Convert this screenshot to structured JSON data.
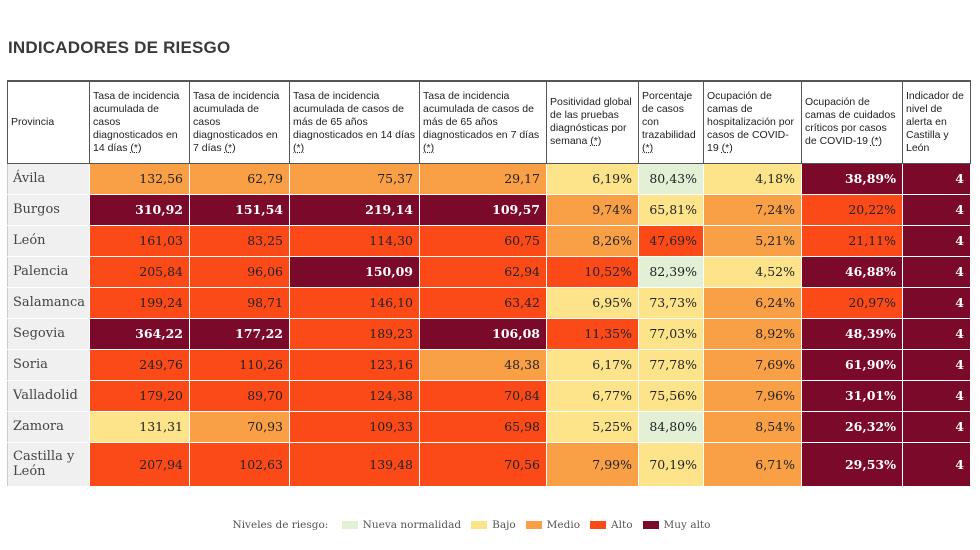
{
  "title": "INDICADORES DE RIESGO",
  "headers": [
    {
      "text": "Provincia",
      "ref": ""
    },
    {
      "text": "Tasa de incidencia acumulada de casos diagnosticados en 14 días ",
      "ref": "(*)"
    },
    {
      "text": "Tasa de incidencia acumulada de casos diagnosticados en 7 días ",
      "ref": "(*)"
    },
    {
      "text": "Tasa de incidencia acumulada de casos de más de 65 años diagnosticados en 14 días ",
      "ref": "(*)"
    },
    {
      "text": "Tasa de incidencia acumulada de casos de más de 65 años diagnosticados en 7 días ",
      "ref": "(*)"
    },
    {
      "text": "Positividad global de las pruebas diagnósticas por semana ",
      "ref": "(*)"
    },
    {
      "text": "Porcentaje de casos con trazabilidad ",
      "ref": "(*)"
    },
    {
      "text": "Ocupación de camas de hospitalización por casos de COVID-19 ",
      "ref": "(*)"
    },
    {
      "text": "Ocupación de camas de cuidados críticos por casos de COVID-19 ",
      "ref": "(*)"
    },
    {
      "text": "Indicador de nivel de alerta en Castilla y León",
      "ref": ""
    }
  ],
  "rows": [
    {
      "provincia": "Ávila",
      "cells": [
        [
          "132,56",
          "m"
        ],
        [
          "62,79",
          "m"
        ],
        [
          "75,37",
          "m"
        ],
        [
          "29,17",
          "m"
        ],
        [
          "6,19%",
          "b"
        ],
        [
          "80,43%",
          "nn"
        ],
        [
          "4,18%",
          "b"
        ],
        [
          "38,89%",
          "ma"
        ],
        [
          "4",
          "ma"
        ]
      ]
    },
    {
      "provincia": "Burgos",
      "cells": [
        [
          "310,92",
          "ma"
        ],
        [
          "151,54",
          "ma"
        ],
        [
          "219,14",
          "ma"
        ],
        [
          "109,57",
          "ma"
        ],
        [
          "9,74%",
          "m"
        ],
        [
          "65,81%",
          "b"
        ],
        [
          "7,24%",
          "m"
        ],
        [
          "20,22%",
          "a"
        ],
        [
          "4",
          "ma"
        ]
      ]
    },
    {
      "provincia": "León",
      "cells": [
        [
          "161,03",
          "a"
        ],
        [
          "83,25",
          "a"
        ],
        [
          "114,30",
          "a"
        ],
        [
          "60,75",
          "a"
        ],
        [
          "8,26%",
          "m"
        ],
        [
          "47,69%",
          "a"
        ],
        [
          "5,21%",
          "m"
        ],
        [
          "21,11%",
          "a"
        ],
        [
          "4",
          "ma"
        ]
      ]
    },
    {
      "provincia": "Palencia",
      "cells": [
        [
          "205,84",
          "a"
        ],
        [
          "96,06",
          "a"
        ],
        [
          "150,09",
          "ma"
        ],
        [
          "62,94",
          "a"
        ],
        [
          "10,52%",
          "a"
        ],
        [
          "82,39%",
          "nn"
        ],
        [
          "4,52%",
          "b"
        ],
        [
          "46,88%",
          "ma"
        ],
        [
          "4",
          "ma"
        ]
      ]
    },
    {
      "provincia": "Salamanca",
      "cells": [
        [
          "199,24",
          "a"
        ],
        [
          "98,71",
          "a"
        ],
        [
          "146,10",
          "a"
        ],
        [
          "63,42",
          "a"
        ],
        [
          "6,95%",
          "b"
        ],
        [
          "73,73%",
          "b"
        ],
        [
          "6,24%",
          "m"
        ],
        [
          "20,97%",
          "a"
        ],
        [
          "4",
          "ma"
        ]
      ]
    },
    {
      "provincia": "Segovia",
      "cells": [
        [
          "364,22",
          "ma"
        ],
        [
          "177,22",
          "ma"
        ],
        [
          "189,23",
          "a"
        ],
        [
          "106,08",
          "ma"
        ],
        [
          "11,35%",
          "a"
        ],
        [
          "77,03%",
          "b"
        ],
        [
          "8,92%",
          "m"
        ],
        [
          "48,39%",
          "ma"
        ],
        [
          "4",
          "ma"
        ]
      ]
    },
    {
      "provincia": "Soria",
      "cells": [
        [
          "249,76",
          "a"
        ],
        [
          "110,26",
          "a"
        ],
        [
          "123,16",
          "a"
        ],
        [
          "48,38",
          "m"
        ],
        [
          "6,17%",
          "b"
        ],
        [
          "77,78%",
          "b"
        ],
        [
          "7,69%",
          "m"
        ],
        [
          "61,90%",
          "ma"
        ],
        [
          "4",
          "ma"
        ]
      ]
    },
    {
      "provincia": "Valladolid",
      "cells": [
        [
          "179,20",
          "a"
        ],
        [
          "89,70",
          "a"
        ],
        [
          "124,38",
          "a"
        ],
        [
          "70,84",
          "a"
        ],
        [
          "6,77%",
          "b"
        ],
        [
          "75,56%",
          "b"
        ],
        [
          "7,96%",
          "m"
        ],
        [
          "31,01%",
          "ma"
        ],
        [
          "4",
          "ma"
        ]
      ]
    },
    {
      "provincia": "Zamora",
      "cells": [
        [
          "131,31",
          "b"
        ],
        [
          "70,93",
          "m"
        ],
        [
          "109,33",
          "a"
        ],
        [
          "65,98",
          "a"
        ],
        [
          "5,25%",
          "b"
        ],
        [
          "84,80%",
          "nn"
        ],
        [
          "8,54%",
          "m"
        ],
        [
          "26,32%",
          "ma"
        ],
        [
          "4",
          "ma"
        ]
      ]
    },
    {
      "provincia": "Castilla y León",
      "cells": [
        [
          "207,94",
          "a"
        ],
        [
          "102,63",
          "a"
        ],
        [
          "139,48",
          "a"
        ],
        [
          "70,56",
          "a"
        ],
        [
          "7,99%",
          "m"
        ],
        [
          "70,19%",
          "b"
        ],
        [
          "6,71%",
          "m"
        ],
        [
          "29,53%",
          "ma"
        ],
        [
          "4",
          "ma"
        ]
      ]
    }
  ],
  "legend": {
    "label": "Niveles de riesgo:",
    "items": [
      {
        "label": "Nueva normalidad",
        "color": "#e2f0d6"
      },
      {
        "label": "Bajo",
        "color": "#fde38a"
      },
      {
        "label": "Medio",
        "color": "#f9a047"
      },
      {
        "label": "Alto",
        "color": "#fb4a17"
      },
      {
        "label": "Muy alto",
        "color": "#7b0a2a"
      }
    ]
  }
}
